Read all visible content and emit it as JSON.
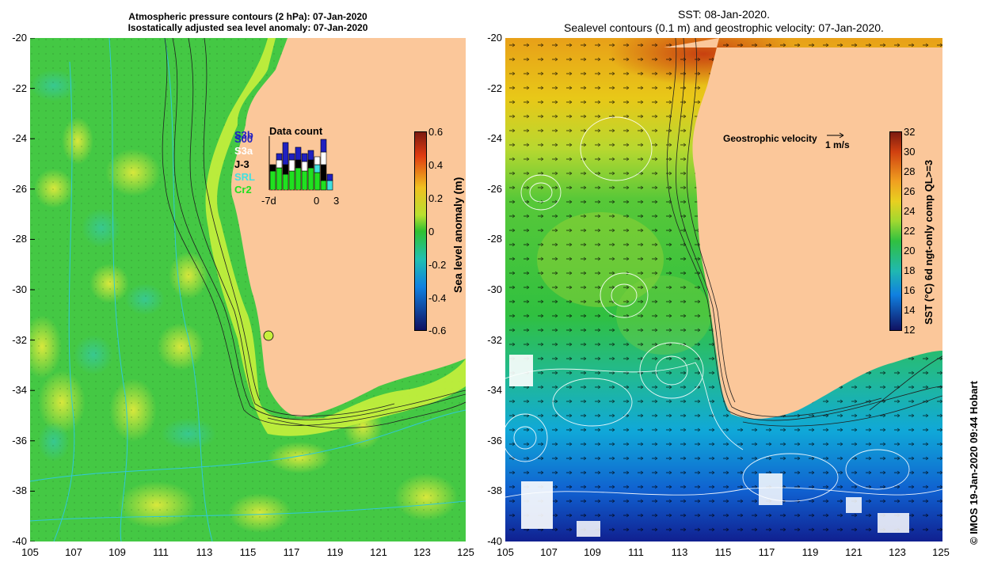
{
  "left_panel": {
    "title_line1": "Atmospheric pressure contours (2 hPa): 07-Jan-2020",
    "title_line2": "Isostatically adjusted sea level anomaly: 07-Jan-2020",
    "colorbar_label": "Sea level anomaly (m)",
    "colorbar_ticks": [
      "0.6",
      "0.4",
      "0.2",
      "0",
      "-0.2",
      "-0.4",
      "-0.6"
    ],
    "data_count": {
      "title": "Data count",
      "satellites": [
        {
          "name": "S3b",
          "color": "#2020c0"
        },
        {
          "name": "S00",
          "color": "#2020c0"
        },
        {
          "name": "S3a",
          "color": "#ffffff"
        },
        {
          "name": "J-3",
          "color": "#000000"
        },
        {
          "name": "SRL",
          "color": "#40e0e0"
        },
        {
          "name": "Cr2",
          "color": "#20e020"
        }
      ],
      "x_ticks": [
        "-7d",
        "0",
        "3"
      ]
    }
  },
  "right_panel": {
    "title_line1": "SST: 08-Jan-2020.",
    "title_line2": "Sealevel contours (0.1 m) and geostrophic velocity: 07-Jan-2020.",
    "colorbar_label": "SST (°C) 6d ngt-only comp QL>=3",
    "colorbar_ticks": [
      "32",
      "30",
      "28",
      "26",
      "24",
      "22",
      "20",
      "18",
      "16",
      "14",
      "12"
    ],
    "velocity_label": "Geostrophic velocity",
    "velocity_scale": "1 m/s"
  },
  "axes": {
    "lat_ticks": [
      "-20",
      "-22",
      "-24",
      "-26",
      "-28",
      "-30",
      "-32",
      "-34",
      "-36",
      "-38",
      "-40"
    ],
    "lon_ticks": [
      "105",
      "107",
      "109",
      "111",
      "113",
      "115",
      "117",
      "119",
      "121",
      "123",
      "125"
    ]
  },
  "credit": "© IMOS 19-Jan-2020 09:44 Hobart",
  "colors": {
    "land": "#fbc79a",
    "ocean_sla": "#3cc83c",
    "sst_warm": "#e07020",
    "sst_cold": "#1040c0"
  }
}
